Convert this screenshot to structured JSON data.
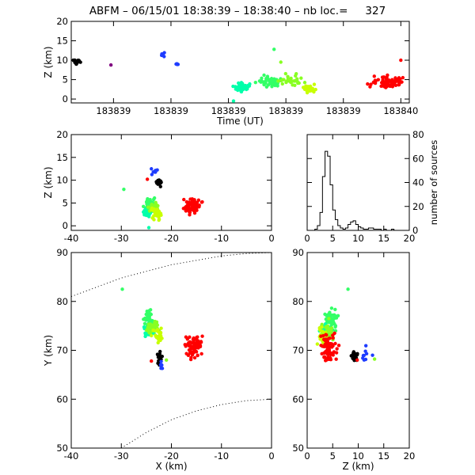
{
  "title": {
    "station": "ABFM",
    "separator": "–",
    "date_time": "06/15/01 18:38:39 – 18:38:40",
    "nb_loc_label": "nb loc.=",
    "nb_loc_value": "327"
  },
  "chart_data": [
    {
      "id": "time_height",
      "type": "scatter",
      "xlabel": "Time (UT)",
      "ylabel": "Z (km)",
      "xlim": [
        0,
        1
      ],
      "ylim": [
        -1,
        20
      ],
      "x_tick_labels": [
        "183839",
        "183839",
        "183839",
        "183839",
        "183839",
        "183840"
      ],
      "x_tick_positions": [
        0.125,
        0.295,
        0.465,
        0.635,
        0.805,
        0.975
      ],
      "y_ticks": [
        0,
        5,
        10,
        15,
        20
      ],
      "clusters": [
        {
          "color": "#000000",
          "x": [
            0.0,
            0.03
          ],
          "y": [
            8.5,
            10.5
          ],
          "n": 18
        },
        {
          "color": "#800080",
          "x": [
            0.115,
            0.12
          ],
          "y": [
            8.6,
            8.9
          ],
          "n": 1
        },
        {
          "color": "#1e3cff",
          "x": [
            0.26,
            0.28
          ],
          "y": [
            10.8,
            12.2
          ],
          "n": 6
        },
        {
          "color": "#1e3cff",
          "x": [
            0.305,
            0.33
          ],
          "y": [
            8.8,
            9.2
          ],
          "n": 4
        },
        {
          "color": "#00ffaa",
          "x": [
            0.47,
            0.54
          ],
          "y": [
            1.5,
            4.8
          ],
          "n": 40
        },
        {
          "color": "#33ff66",
          "x": [
            0.53,
            0.64
          ],
          "y": [
            2.5,
            6.5
          ],
          "n": 45
        },
        {
          "color": "#88ff22",
          "x": [
            0.6,
            0.7
          ],
          "y": [
            2.5,
            7.0
          ],
          "n": 30
        },
        {
          "color": "#c8ff00",
          "x": [
            0.67,
            0.73
          ],
          "y": [
            1.0,
            4.5
          ],
          "n": 25
        },
        {
          "color": "#ff0000",
          "x": [
            0.87,
            1.0
          ],
          "y": [
            2.0,
            6.5
          ],
          "n": 75
        }
      ],
      "points": [
        {
          "x": 0.48,
          "y": -0.5,
          "color": "#00ffaa"
        },
        {
          "x": 0.6,
          "y": 12.8,
          "color": "#33ff66"
        },
        {
          "x": 0.62,
          "y": 9.5,
          "color": "#88ff22"
        },
        {
          "x": 0.975,
          "y": 10.0,
          "color": "#ff0000"
        }
      ]
    },
    {
      "id": "x_height",
      "type": "scatter",
      "xlabel": "",
      "ylabel": "Z (km)",
      "xlim": [
        -40,
        0
      ],
      "ylim": [
        -1,
        20
      ],
      "x_ticks": [
        -40,
        -30,
        -20,
        -10,
        0
      ],
      "y_ticks": [
        0,
        5,
        10,
        15,
        20
      ],
      "clusters": [
        {
          "color": "#000000",
          "x": [
            -23.5,
            -21.5
          ],
          "y": [
            8.5,
            10.5
          ],
          "n": 18
        },
        {
          "color": "#1e3cff",
          "x": [
            -24.5,
            -22.0
          ],
          "y": [
            10.5,
            13.0
          ],
          "n": 8
        },
        {
          "color": "#00ffaa",
          "x": [
            -26.5,
            -23.0
          ],
          "y": [
            1.0,
            5.0
          ],
          "n": 35
        },
        {
          "color": "#33ff66",
          "x": [
            -26.0,
            -22.5
          ],
          "y": [
            2.0,
            7.0
          ],
          "n": 40
        },
        {
          "color": "#88ff22",
          "x": [
            -25.0,
            -22.0
          ],
          "y": [
            2.0,
            6.0
          ],
          "n": 30
        },
        {
          "color": "#c8ff00",
          "x": [
            -24.5,
            -21.5
          ],
          "y": [
            1.0,
            4.5
          ],
          "n": 25
        },
        {
          "color": "#ff0000",
          "x": [
            -18.5,
            -13.5
          ],
          "y": [
            2.0,
            6.5
          ],
          "n": 75
        }
      ],
      "points": [
        {
          "x": -29.5,
          "y": 8.0,
          "color": "#33ff66"
        },
        {
          "x": -24.8,
          "y": 10.2,
          "color": "#ff0000"
        },
        {
          "x": -24.5,
          "y": -0.4,
          "color": "#00ffaa"
        }
      ]
    },
    {
      "id": "histogram",
      "type": "histogram",
      "xlabel": "",
      "ylabel": "number of sources",
      "xlim": [
        0,
        20
      ],
      "ylim": [
        0,
        80
      ],
      "x_ticks": [
        0,
        5,
        10,
        15,
        20
      ],
      "y_ticks": [
        0,
        20,
        40,
        60,
        80
      ],
      "bin_width": 0.5,
      "counts": [
        0,
        0,
        0,
        1,
        4,
        15,
        45,
        66,
        62,
        38,
        17,
        9,
        4,
        2,
        1,
        2,
        5,
        7,
        8,
        5,
        3,
        2,
        1,
        1,
        2,
        2,
        1,
        1,
        1,
        0,
        1,
        0,
        0,
        1,
        0,
        0,
        0,
        0,
        0,
        0
      ]
    },
    {
      "id": "plan_view",
      "type": "scatter",
      "xlabel": "X (km)",
      "ylabel": "Y (km)",
      "xlim": [
        -40,
        0
      ],
      "ylim": [
        50,
        90
      ],
      "x_ticks": [
        -40,
        -30,
        -20,
        -10,
        0
      ],
      "y_ticks": [
        50,
        60,
        70,
        80,
        90
      ],
      "dotted_arcs": [
        {
          "x": [
            -40,
            -30,
            -20,
            -10,
            -5,
            0
          ],
          "y": [
            81.0,
            84.8,
            87.5,
            89.3,
            89.8,
            90.0
          ]
        },
        {
          "x": [
            -30,
            -25,
            -20,
            -15,
            -10,
            -5,
            0
          ],
          "y": [
            50.0,
            53.2,
            55.8,
            57.6,
            58.9,
            59.7,
            60.0
          ]
        }
      ],
      "clusters": [
        {
          "color": "#000000",
          "x": [
            -23.0,
            -21.5
          ],
          "y": [
            66.0,
            70.5
          ],
          "n": 18
        },
        {
          "color": "#1e3cff",
          "x": [
            -22.5,
            -21.5
          ],
          "y": [
            65.5,
            69.0
          ],
          "n": 6
        },
        {
          "color": "#00ffaa",
          "x": [
            -26.0,
            -22.5
          ],
          "y": [
            72.0,
            76.5
          ],
          "n": 35
        },
        {
          "color": "#33ff66",
          "x": [
            -26.5,
            -22.5
          ],
          "y": [
            73.0,
            79.5
          ],
          "n": 40
        },
        {
          "color": "#88ff22",
          "x": [
            -25.5,
            -21.5
          ],
          "y": [
            71.5,
            77.0
          ],
          "n": 30
        },
        {
          "color": "#c8ff00",
          "x": [
            -24.5,
            -21.0
          ],
          "y": [
            70.5,
            75.0
          ],
          "n": 25
        },
        {
          "color": "#ff0000",
          "x": [
            -18.0,
            -13.5
          ],
          "y": [
            67.0,
            74.5
          ],
          "n": 75
        }
      ],
      "points": [
        {
          "x": -29.8,
          "y": 82.5,
          "color": "#33ff66"
        },
        {
          "x": -24.0,
          "y": 67.8,
          "color": "#ff0000"
        },
        {
          "x": -21.0,
          "y": 68.0,
          "color": "#88ff22"
        }
      ]
    },
    {
      "id": "z_plan",
      "type": "scatter",
      "xlabel": "Z (km)",
      "ylabel": "",
      "xlim": [
        0,
        20
      ],
      "ylim": [
        50,
        90
      ],
      "x_ticks": [
        0,
        5,
        10,
        15,
        20
      ],
      "y_ticks": [
        50,
        60,
        70,
        80,
        90
      ],
      "clusters": [
        {
          "color": "#000000",
          "x": [
            8.0,
            10.5
          ],
          "y": [
            67.0,
            70.5
          ],
          "n": 18
        },
        {
          "color": "#1e3cff",
          "x": [
            9.5,
            12.5
          ],
          "y": [
            65.5,
            73.0
          ],
          "n": 8
        },
        {
          "color": "#00ffaa",
          "x": [
            2.0,
            5.0
          ],
          "y": [
            72.0,
            76.5
          ],
          "n": 35
        },
        {
          "color": "#33ff66",
          "x": [
            3.0,
            6.5
          ],
          "y": [
            73.0,
            79.5
          ],
          "n": 40
        },
        {
          "color": "#88ff22",
          "x": [
            2.5,
            6.0
          ],
          "y": [
            71.5,
            77.0
          ],
          "n": 30
        },
        {
          "color": "#c8ff00",
          "x": [
            1.5,
            4.5
          ],
          "y": [
            70.5,
            75.0
          ],
          "n": 25
        },
        {
          "color": "#ff0000",
          "x": [
            2.0,
            6.5
          ],
          "y": [
            66.5,
            74.5
          ],
          "n": 75
        }
      ],
      "points": [
        {
          "x": 8.0,
          "y": 82.5,
          "color": "#33ff66"
        },
        {
          "x": 9.8,
          "y": 68.0,
          "color": "#ff0000"
        },
        {
          "x": 13.2,
          "y": 68.2,
          "color": "#88ff22"
        },
        {
          "x": 12.8,
          "y": 69.0,
          "color": "#1e3cff"
        }
      ]
    }
  ]
}
